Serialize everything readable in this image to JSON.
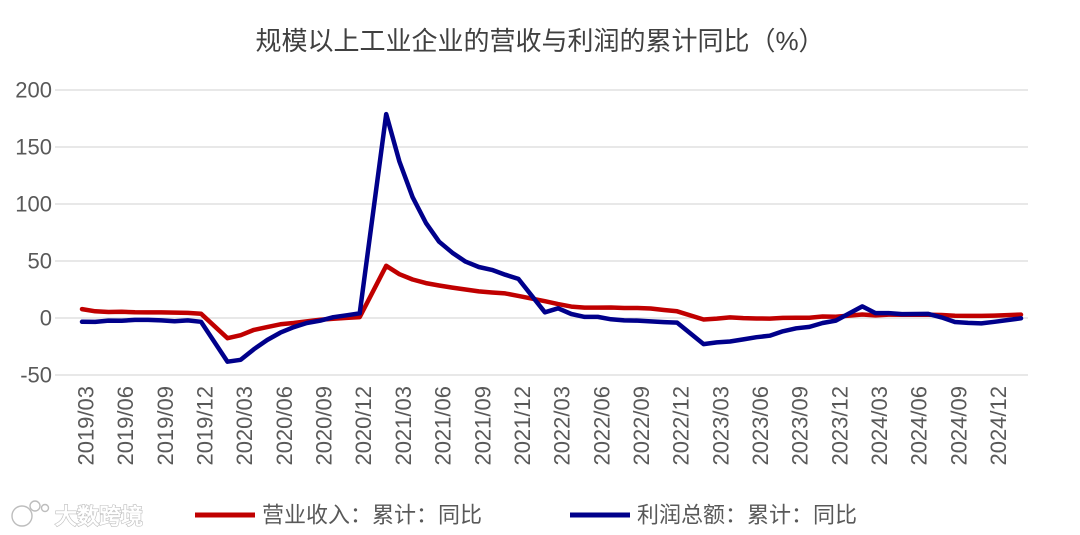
{
  "chart_data": {
    "type": "line",
    "title": "规模以上工业企业的营收与利润的累计同比（%）",
    "x": [
      "2019-03",
      "2019-04",
      "2019-05",
      "2019-06",
      "2019-07",
      "2019-08",
      "2019-09",
      "2019-10",
      "2019-11",
      "2019-12",
      "2020-02",
      "2020-03",
      "2020-04",
      "2020-05",
      "2020-06",
      "2020-07",
      "2020-08",
      "2020-09",
      "2020-10",
      "2020-11",
      "2020-12",
      "2021-02",
      "2021-03",
      "2021-04",
      "2021-05",
      "2021-06",
      "2021-07",
      "2021-08",
      "2021-09",
      "2021-10",
      "2021-11",
      "2021-12",
      "2022-02",
      "2022-03",
      "2022-04",
      "2022-05",
      "2022-06",
      "2022-07",
      "2022-08",
      "2022-09",
      "2022-10",
      "2022-11",
      "2022-12",
      "2023-02",
      "2023-03",
      "2023-04",
      "2023-05",
      "2023-06",
      "2023-07",
      "2023-08",
      "2023-09",
      "2023-10",
      "2023-11",
      "2023-12",
      "2024-02",
      "2024-03",
      "2024-04",
      "2024-05",
      "2024-06",
      "2024-07",
      "2024-08",
      "2024-09",
      "2024-10",
      "2024-11",
      "2024-12",
      "2025-02"
    ],
    "xlim": [
      "2019-03",
      "2025-02"
    ],
    "xticks": [
      "2019/03",
      "2019/06",
      "2019/09",
      "2019/12",
      "2020/03",
      "2020/06",
      "2020/09",
      "2020/12",
      "2021/03",
      "2021/06",
      "2021/09",
      "2021/12",
      "2022/03",
      "2022/06",
      "2022/09",
      "2022/12",
      "2023/03",
      "2023/06",
      "2023/09",
      "2023/12",
      "2024/03",
      "2024/06",
      "2024/09",
      "2024/12"
    ],
    "ylim": [
      -50,
      200
    ],
    "yticks": [
      -50,
      0,
      50,
      100,
      150,
      200
    ],
    "grid": true,
    "legend": "bottom",
    "series": [
      {
        "name": "营业收入：累计：同比",
        "color": "#C00000",
        "values": [
          7.8,
          5.9,
          5.3,
          5.4,
          5.0,
          4.9,
          4.9,
          4.7,
          4.5,
          3.8,
          -17.7,
          -15.1,
          -10.4,
          -8.0,
          -5.5,
          -4.4,
          -2.9,
          -1.5,
          -0.6,
          0.1,
          0.8,
          45.8,
          38.4,
          33.8,
          30.6,
          28.5,
          26.7,
          25.0,
          23.3,
          22.4,
          21.6,
          19.4,
          14.7,
          12.2,
          10.0,
          9.1,
          9.1,
          9.2,
          8.8,
          8.8,
          8.3,
          7.0,
          5.9,
          -1.3,
          -0.5,
          0.5,
          -0.1,
          -0.4,
          -0.5,
          0.1,
          0.3,
          0.3,
          1.3,
          1.1,
          3.1,
          2.3,
          3.0,
          2.9,
          2.9,
          2.9,
          2.6,
          1.9,
          1.8,
          1.8,
          2.1,
          3.0
        ]
      },
      {
        "name": "利润总额：累计：同比",
        "color": "#00008B",
        "values": [
          -3.3,
          -3.4,
          -2.3,
          -2.4,
          -1.7,
          -1.7,
          -2.1,
          -2.9,
          -2.1,
          -3.3,
          -38.3,
          -36.7,
          -27.4,
          -19.3,
          -12.8,
          -8.1,
          -4.4,
          -2.4,
          0.7,
          2.4,
          4.1,
          178.9,
          137.3,
          106.0,
          83.4,
          66.9,
          57.3,
          49.5,
          44.7,
          42.2,
          38.0,
          34.3,
          5.0,
          8.5,
          3.5,
          1.0,
          1.0,
          -1.1,
          -2.1,
          -2.3,
          -3.0,
          -3.6,
          -4.0,
          -22.9,
          -21.4,
          -20.6,
          -18.8,
          -16.8,
          -15.5,
          -11.7,
          -9.0,
          -7.8,
          -4.4,
          -2.3,
          10.2,
          4.3,
          4.3,
          3.4,
          3.5,
          3.6,
          0.5,
          -3.5,
          -4.3,
          -4.7,
          -3.3,
          -0.3
        ]
      }
    ]
  },
  "watermark": {
    "text": "大数跨境"
  }
}
